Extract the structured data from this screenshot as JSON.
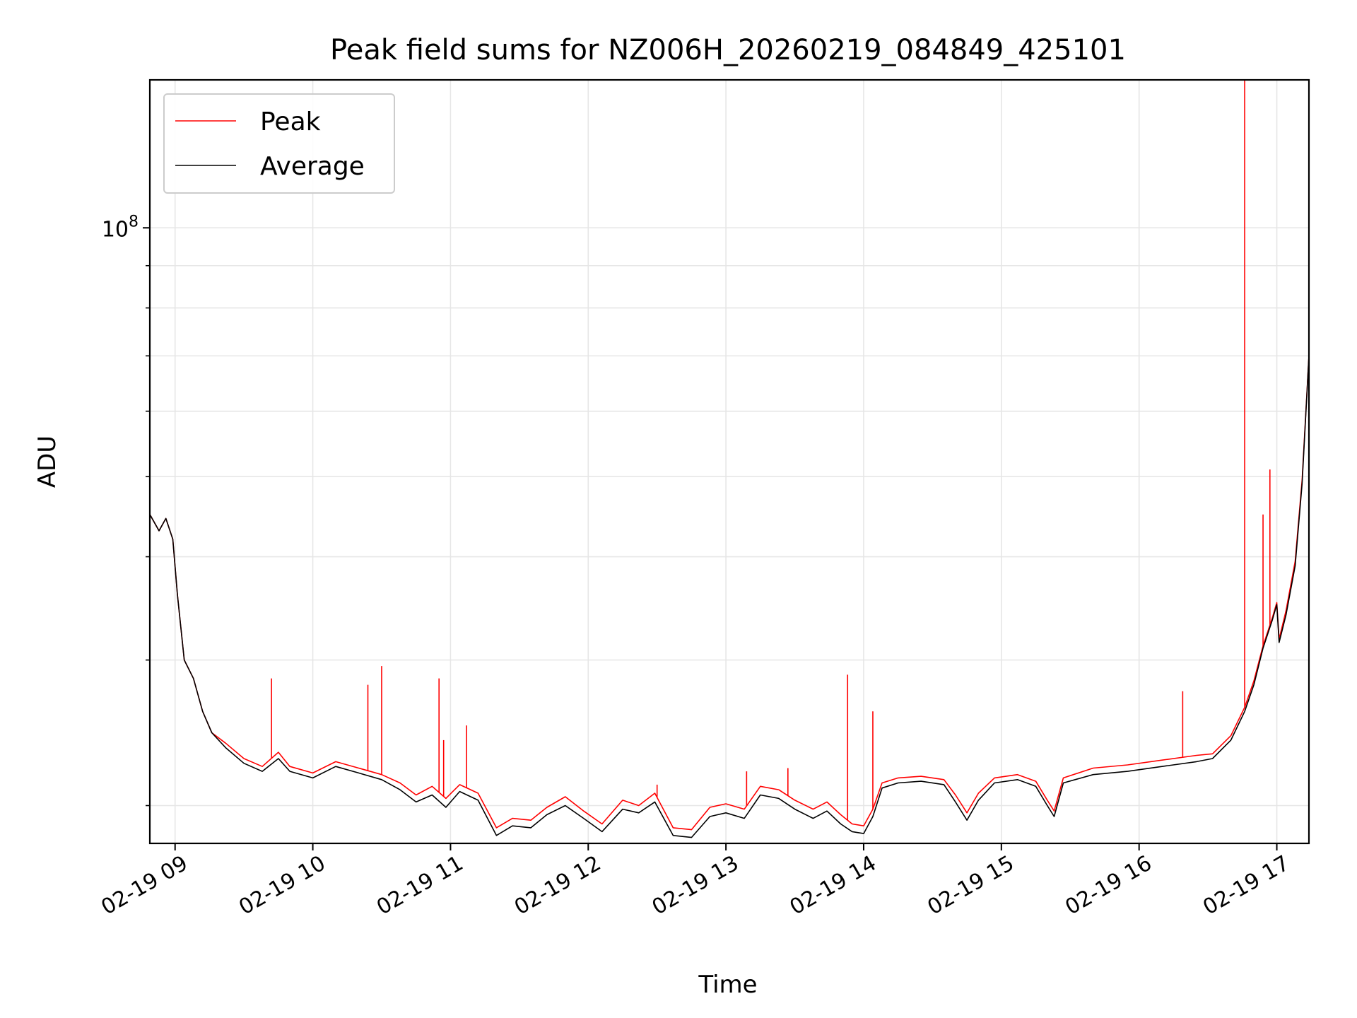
{
  "chart_data": {
    "type": "line",
    "title": "Peak field sums for NZ006H_20260219_084849_425101",
    "xlabel": "Time",
    "ylabel": "ADU",
    "y_scale": "log",
    "xlim": [
      "2026-02-19 08:49",
      "2026-02-19 17:14"
    ],
    "ylim": [
      18000000,
      151000000
    ],
    "x_ticks": [
      {
        "x": "2026-02-19 09:00",
        "label": "02-19 09"
      },
      {
        "x": "2026-02-19 10:00",
        "label": "02-19 10"
      },
      {
        "x": "2026-02-19 11:00",
        "label": "02-19 11"
      },
      {
        "x": "2026-02-19 12:00",
        "label": "02-19 12"
      },
      {
        "x": "2026-02-19 13:00",
        "label": "02-19 13"
      },
      {
        "x": "2026-02-19 14:00",
        "label": "02-19 14"
      },
      {
        "x": "2026-02-19 15:00",
        "label": "02-19 15"
      },
      {
        "x": "2026-02-19 16:00",
        "label": "02-19 16"
      },
      {
        "x": "2026-02-19 17:00",
        "label": "02-19 17"
      }
    ],
    "y_major_tick": {
      "value": 100000000,
      "label_base": "10",
      "label_exp": "8"
    },
    "y_minor_ticks": [
      20000000,
      30000000,
      40000000,
      50000000,
      60000000,
      70000000,
      80000000,
      90000000
    ],
    "grid": true,
    "legend_position": "top-left",
    "series": [
      {
        "name": "Average",
        "color": "#000000",
        "points": [
          [
            "2026-02-19 08:49",
            45000000
          ],
          [
            "2026-02-19 08:53",
            43000000
          ],
          [
            "2026-02-19 08:56",
            44500000
          ],
          [
            "2026-02-19 08:59",
            42000000
          ],
          [
            "2026-02-19 09:01",
            36000000
          ],
          [
            "2026-02-19 09:04",
            30000000
          ],
          [
            "2026-02-19 09:08",
            28500000
          ],
          [
            "2026-02-19 09:12",
            26000000
          ],
          [
            "2026-02-19 09:16",
            24500000
          ],
          [
            "2026-02-19 09:22",
            23500000
          ],
          [
            "2026-02-19 09:30",
            22500000
          ],
          [
            "2026-02-19 09:38",
            22000000
          ],
          [
            "2026-02-19 09:45",
            22800000
          ],
          [
            "2026-02-19 09:50",
            22000000
          ],
          [
            "2026-02-19 10:00",
            21600000
          ],
          [
            "2026-02-19 10:10",
            22300000
          ],
          [
            "2026-02-19 10:20",
            21900000
          ],
          [
            "2026-02-19 10:30",
            21500000
          ],
          [
            "2026-02-19 10:38",
            20900000
          ],
          [
            "2026-02-19 10:45",
            20200000
          ],
          [
            "2026-02-19 10:52",
            20600000
          ],
          [
            "2026-02-19 10:58",
            19900000
          ],
          [
            "2026-02-19 11:04",
            20800000
          ],
          [
            "2026-02-19 11:12",
            20300000
          ],
          [
            "2026-02-19 11:20",
            18400000
          ],
          [
            "2026-02-19 11:27",
            18900000
          ],
          [
            "2026-02-19 11:35",
            18800000
          ],
          [
            "2026-02-19 11:42",
            19500000
          ],
          [
            "2026-02-19 11:50",
            20000000
          ],
          [
            "2026-02-19 11:58",
            19300000
          ],
          [
            "2026-02-19 12:06",
            18600000
          ],
          [
            "2026-02-19 12:15",
            19800000
          ],
          [
            "2026-02-19 12:22",
            19600000
          ],
          [
            "2026-02-19 12:29",
            20200000
          ],
          [
            "2026-02-19 12:37",
            18400000
          ],
          [
            "2026-02-19 12:45",
            18300000
          ],
          [
            "2026-02-19 12:53",
            19400000
          ],
          [
            "2026-02-19 13:00",
            19600000
          ],
          [
            "2026-02-19 13:08",
            19300000
          ],
          [
            "2026-02-19 13:15",
            20600000
          ],
          [
            "2026-02-19 13:23",
            20400000
          ],
          [
            "2026-02-19 13:30",
            19800000
          ],
          [
            "2026-02-19 13:38",
            19300000
          ],
          [
            "2026-02-19 13:44",
            19700000
          ],
          [
            "2026-02-19 13:50",
            19000000
          ],
          [
            "2026-02-19 13:55",
            18600000
          ],
          [
            "2026-02-19 14:00",
            18500000
          ],
          [
            "2026-02-19 14:04",
            19400000
          ],
          [
            "2026-02-19 14:08",
            21000000
          ],
          [
            "2026-02-19 14:15",
            21300000
          ],
          [
            "2026-02-19 14:25",
            21400000
          ],
          [
            "2026-02-19 14:35",
            21200000
          ],
          [
            "2026-02-19 14:40",
            20200000
          ],
          [
            "2026-02-19 14:45",
            19200000
          ],
          [
            "2026-02-19 14:50",
            20300000
          ],
          [
            "2026-02-19 14:57",
            21300000
          ],
          [
            "2026-02-19 15:07",
            21500000
          ],
          [
            "2026-02-19 15:15",
            21100000
          ],
          [
            "2026-02-19 15:20",
            20000000
          ],
          [
            "2026-02-19 15:23",
            19400000
          ],
          [
            "2026-02-19 15:27",
            21300000
          ],
          [
            "2026-02-19 15:40",
            21800000
          ],
          [
            "2026-02-19 15:55",
            22000000
          ],
          [
            "2026-02-19 16:10",
            22300000
          ],
          [
            "2026-02-19 16:25",
            22600000
          ],
          [
            "2026-02-19 16:32",
            22800000
          ],
          [
            "2026-02-19 16:40",
            24000000
          ],
          [
            "2026-02-19 16:46",
            26000000
          ],
          [
            "2026-02-19 16:50",
            28000000
          ],
          [
            "2026-02-19 16:54",
            31000000
          ],
          [
            "2026-02-19 16:58",
            33500000
          ],
          [
            "2026-02-19 17:00",
            35000000
          ],
          [
            "2026-02-19 17:01",
            31500000
          ],
          [
            "2026-02-19 17:04",
            34000000
          ],
          [
            "2026-02-19 17:08",
            39000000
          ],
          [
            "2026-02-19 17:11",
            49000000
          ],
          [
            "2026-02-19 17:14",
            70000000
          ]
        ],
        "spikes": []
      },
      {
        "name": "Peak",
        "color": "#ff0000",
        "points": [
          [
            "2026-02-19 08:49",
            45000000
          ],
          [
            "2026-02-19 08:53",
            43000000
          ],
          [
            "2026-02-19 08:56",
            44500000
          ],
          [
            "2026-02-19 08:59",
            42000000
          ],
          [
            "2026-02-19 09:01",
            36000000
          ],
          [
            "2026-02-19 09:04",
            30000000
          ],
          [
            "2026-02-19 09:08",
            28500000
          ],
          [
            "2026-02-19 09:12",
            26000000
          ],
          [
            "2026-02-19 09:16",
            24500000
          ],
          [
            "2026-02-19 09:22",
            23800000
          ],
          [
            "2026-02-19 09:30",
            22800000
          ],
          [
            "2026-02-19 09:38",
            22300000
          ],
          [
            "2026-02-19 09:45",
            23200000
          ],
          [
            "2026-02-19 09:50",
            22300000
          ],
          [
            "2026-02-19 10:00",
            21900000
          ],
          [
            "2026-02-19 10:10",
            22600000
          ],
          [
            "2026-02-19 10:20",
            22200000
          ],
          [
            "2026-02-19 10:30",
            21800000
          ],
          [
            "2026-02-19 10:38",
            21300000
          ],
          [
            "2026-02-19 10:45",
            20600000
          ],
          [
            "2026-02-19 10:52",
            21100000
          ],
          [
            "2026-02-19 10:58",
            20400000
          ],
          [
            "2026-02-19 11:04",
            21200000
          ],
          [
            "2026-02-19 11:12",
            20700000
          ],
          [
            "2026-02-19 11:20",
            18800000
          ],
          [
            "2026-02-19 11:27",
            19300000
          ],
          [
            "2026-02-19 11:35",
            19200000
          ],
          [
            "2026-02-19 11:42",
            19900000
          ],
          [
            "2026-02-19 11:50",
            20500000
          ],
          [
            "2026-02-19 11:58",
            19700000
          ],
          [
            "2026-02-19 12:06",
            19000000
          ],
          [
            "2026-02-19 12:15",
            20300000
          ],
          [
            "2026-02-19 12:22",
            20000000
          ],
          [
            "2026-02-19 12:29",
            20700000
          ],
          [
            "2026-02-19 12:37",
            18800000
          ],
          [
            "2026-02-19 12:45",
            18700000
          ],
          [
            "2026-02-19 12:53",
            19900000
          ],
          [
            "2026-02-19 13:00",
            20100000
          ],
          [
            "2026-02-19 13:08",
            19800000
          ],
          [
            "2026-02-19 13:15",
            21100000
          ],
          [
            "2026-02-19 13:23",
            20900000
          ],
          [
            "2026-02-19 13:30",
            20300000
          ],
          [
            "2026-02-19 13:38",
            19800000
          ],
          [
            "2026-02-19 13:44",
            20200000
          ],
          [
            "2026-02-19 13:50",
            19500000
          ],
          [
            "2026-02-19 13:55",
            19000000
          ],
          [
            "2026-02-19 14:00",
            18900000
          ],
          [
            "2026-02-19 14:04",
            19800000
          ],
          [
            "2026-02-19 14:08",
            21300000
          ],
          [
            "2026-02-19 14:15",
            21600000
          ],
          [
            "2026-02-19 14:25",
            21700000
          ],
          [
            "2026-02-19 14:35",
            21500000
          ],
          [
            "2026-02-19 14:40",
            20600000
          ],
          [
            "2026-02-19 14:45",
            19600000
          ],
          [
            "2026-02-19 14:50",
            20700000
          ],
          [
            "2026-02-19 14:57",
            21600000
          ],
          [
            "2026-02-19 15:07",
            21800000
          ],
          [
            "2026-02-19 15:15",
            21400000
          ],
          [
            "2026-02-19 15:20",
            20300000
          ],
          [
            "2026-02-19 15:23",
            19700000
          ],
          [
            "2026-02-19 15:27",
            21600000
          ],
          [
            "2026-02-19 15:40",
            22200000
          ],
          [
            "2026-02-19 15:55",
            22400000
          ],
          [
            "2026-02-19 16:10",
            22700000
          ],
          [
            "2026-02-19 16:25",
            23000000
          ],
          [
            "2026-02-19 16:32",
            23100000
          ],
          [
            "2026-02-19 16:40",
            24300000
          ],
          [
            "2026-02-19 16:46",
            26300000
          ],
          [
            "2026-02-19 16:50",
            28300000
          ],
          [
            "2026-02-19 16:54",
            31200000
          ],
          [
            "2026-02-19 16:58",
            33700000
          ],
          [
            "2026-02-19 17:00",
            35200000
          ],
          [
            "2026-02-19 17:01",
            31800000
          ],
          [
            "2026-02-19 17:04",
            34400000
          ],
          [
            "2026-02-19 17:08",
            39500000
          ],
          [
            "2026-02-19 17:11",
            49500000
          ],
          [
            "2026-02-19 17:14",
            70000000
          ]
        ],
        "spikes": [
          [
            "2026-02-19 09:42",
            28500000
          ],
          [
            "2026-02-19 10:24",
            28000000
          ],
          [
            "2026-02-19 10:30",
            29500000
          ],
          [
            "2026-02-19 10:55",
            28500000
          ],
          [
            "2026-02-19 10:57",
            24000000
          ],
          [
            "2026-02-19 11:07",
            25000000
          ],
          [
            "2026-02-19 12:30",
            21200000
          ],
          [
            "2026-02-19 13:09",
            22000000
          ],
          [
            "2026-02-19 13:27",
            22200000
          ],
          [
            "2026-02-19 13:53",
            28800000
          ],
          [
            "2026-02-19 14:04",
            26000000
          ],
          [
            "2026-02-19 16:19",
            27500000
          ],
          [
            "2026-02-19 16:46",
            151000000
          ],
          [
            "2026-02-19 16:54",
            45000000
          ],
          [
            "2026-02-19 16:57",
            51000000
          ]
        ]
      }
    ]
  }
}
